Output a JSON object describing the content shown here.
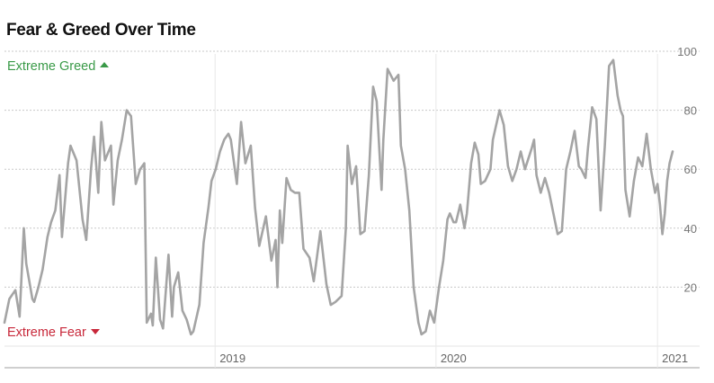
{
  "title": "Fear & Greed Over Time",
  "colors": {
    "greed": "#3a9a48",
    "fear": "#c8283a",
    "line": "#a4a4a4",
    "grid": "#c8c8c8",
    "tick": "#777777"
  },
  "chart_data": {
    "type": "line",
    "title": "Fear & Greed Over Time",
    "xlabel": "",
    "ylabel": "",
    "ylim": [
      0,
      100
    ],
    "y_ticks": [
      20,
      40,
      60,
      80,
      100
    ],
    "x_ticks": [
      {
        "label": "2019",
        "date": "2019-01-01"
      },
      {
        "label": "2020",
        "date": "2020-01-01"
      },
      {
        "label": "2021",
        "date": "2021-01-01"
      }
    ],
    "x_range": [
      "2018-01-18",
      "2021-01-26"
    ],
    "annotations": {
      "top": "Extreme Greed",
      "bottom": "Extreme Fear"
    },
    "grid": true,
    "series": [
      {
        "x": [
          "2018-01-18",
          "2018-01-26",
          "2018-02-05",
          "2018-02-12",
          "2018-02-19",
          "2018-02-23",
          "2018-03-05",
          "2018-03-08",
          "2018-03-15",
          "2018-03-22",
          "2018-03-30",
          "2018-04-05",
          "2018-04-12",
          "2018-04-19",
          "2018-04-23",
          "2018-05-03",
          "2018-05-07",
          "2018-05-17",
          "2018-05-27",
          "2018-06-02",
          "2018-06-10",
          "2018-06-15",
          "2018-06-22",
          "2018-06-27",
          "2018-07-03",
          "2018-07-13",
          "2018-07-17",
          "2018-07-24",
          "2018-07-31",
          "2018-08-08",
          "2018-08-15",
          "2018-08-23",
          "2018-08-30",
          "2018-09-06",
          "2018-09-10",
          "2018-09-17",
          "2018-09-20",
          "2018-09-25",
          "2018-10-02",
          "2018-10-07",
          "2018-10-16",
          "2018-10-22",
          "2018-10-25",
          "2018-11-01",
          "2018-11-08",
          "2018-11-15",
          "2018-11-22",
          "2018-11-26",
          "2018-12-06",
          "2018-12-13",
          "2018-12-21",
          "2018-12-26",
          "2019-01-02",
          "2019-01-09",
          "2019-01-16",
          "2019-01-23",
          "2019-01-27",
          "2019-02-06",
          "2019-02-13",
          "2019-02-20",
          "2019-03-01",
          "2019-03-08",
          "2019-03-15",
          "2019-03-26",
          "2019-04-04",
          "2019-04-11",
          "2019-04-14",
          "2019-04-18",
          "2019-04-22",
          "2019-04-29",
          "2019-05-06",
          "2019-05-13",
          "2019-05-20",
          "2019-05-27",
          "2019-06-06",
          "2019-06-13",
          "2019-06-24",
          "2019-07-04",
          "2019-07-11",
          "2019-07-19",
          "2019-07-29",
          "2019-08-05",
          "2019-08-08",
          "2019-08-15",
          "2019-08-22",
          "2019-08-29",
          "2019-09-05",
          "2019-09-12",
          "2019-09-19",
          "2019-09-25",
          "2019-10-03",
          "2019-10-06",
          "2019-10-13",
          "2019-10-23",
          "2019-10-31",
          "2019-11-04",
          "2019-11-11",
          "2019-11-18",
          "2019-11-25",
          "2019-12-03",
          "2019-12-08",
          "2019-12-15",
          "2019-12-22",
          "2019-12-29",
          "2020-01-06",
          "2020-01-13",
          "2020-01-20",
          "2020-01-24",
          "2020-01-30",
          "2020-02-03",
          "2020-02-10",
          "2020-02-17",
          "2020-02-21",
          "2020-02-28",
          "2020-03-05",
          "2020-03-11",
          "2020-03-15",
          "2020-03-22",
          "2020-03-31",
          "2020-04-04",
          "2020-04-15",
          "2020-04-22",
          "2020-04-29",
          "2020-05-06",
          "2020-05-13",
          "2020-05-20",
          "2020-05-27",
          "2020-06-07",
          "2020-06-11",
          "2020-06-15",
          "2020-06-22",
          "2020-06-29",
          "2020-07-06",
          "2020-07-13",
          "2020-07-20",
          "2020-07-27",
          "2020-08-03",
          "2020-08-10",
          "2020-08-17",
          "2020-08-24",
          "2020-08-28",
          "2020-09-04",
          "2020-09-08",
          "2020-09-15",
          "2020-09-22",
          "2020-09-29",
          "2020-10-06",
          "2020-10-13",
          "2020-10-20",
          "2020-10-27",
          "2020-11-01",
          "2020-11-05",
          "2020-11-09",
          "2020-11-16",
          "2020-11-23",
          "2020-11-30",
          "2020-12-07",
          "2020-12-14",
          "2020-12-21",
          "2020-12-28",
          "2021-01-01",
          "2021-01-05",
          "2021-01-09",
          "2021-01-13",
          "2021-01-17",
          "2021-01-21",
          "2021-01-26"
        ],
        "values": [
          8,
          16,
          19,
          10,
          40,
          28,
          16,
          15,
          20,
          26,
          37,
          42,
          46,
          58,
          37,
          62,
          68,
          63,
          43,
          36,
          60,
          71,
          52,
          76,
          63,
          68,
          48,
          63,
          70,
          80,
          78,
          55,
          60,
          62,
          8,
          11,
          7,
          30,
          9,
          6,
          31,
          10,
          20,
          25,
          12,
          9,
          4,
          5,
          14,
          35,
          47,
          56,
          60,
          66,
          70,
          72,
          70,
          55,
          76,
          62,
          68,
          47,
          34,
          44,
          29,
          36,
          20,
          46,
          35,
          57,
          53,
          52,
          52,
          33,
          30,
          22,
          39,
          21,
          14,
          15,
          17,
          40,
          68,
          55,
          61,
          38,
          39,
          58,
          88,
          83,
          53,
          70,
          94,
          90,
          92,
          68,
          60,
          46,
          20,
          8,
          4,
          5,
          12,
          8,
          20,
          29,
          43,
          45,
          42,
          42,
          48,
          40,
          45,
          62,
          69,
          65,
          55,
          56,
          60,
          70,
          80,
          75,
          61,
          56,
          60,
          66,
          60,
          67,
          70,
          58,
          52,
          57,
          52,
          45,
          38,
          39,
          60,
          66,
          73,
          61,
          60,
          57,
          67,
          81,
          77,
          46,
          68,
          95,
          97,
          85,
          80,
          78,
          53,
          44,
          56,
          64,
          61,
          72,
          60,
          52,
          55,
          48,
          38,
          45,
          56,
          62,
          66
        ]
      }
    ]
  }
}
